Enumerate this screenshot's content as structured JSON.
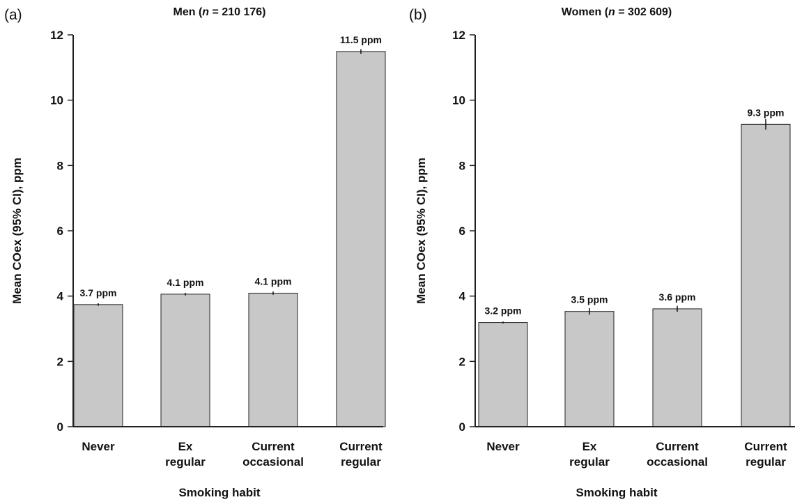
{
  "chart_data": [
    {
      "type": "bar",
      "panel_label": "(a)",
      "title_prefix": "Men (",
      "title_n": "n",
      "title_suffix": " = 210 176)",
      "xlabel": "Smoking habit",
      "ylabel": "Mean COex (95% CI), ppm",
      "ylim": [
        0,
        12
      ],
      "yticks": [
        "0",
        "2",
        "4",
        "6",
        "8",
        "10",
        "12"
      ],
      "categories": [
        [
          "Never"
        ],
        [
          "Ex",
          "regular"
        ],
        [
          "Current",
          "occasional"
        ],
        [
          "Current",
          "regular"
        ]
      ],
      "values": [
        3.74,
        4.06,
        4.09,
        11.49
      ],
      "ci_low": [
        3.7,
        4.02,
        4.04,
        11.42
      ],
      "ci_high": [
        3.78,
        4.1,
        4.14,
        11.56
      ],
      "data_labels": [
        "3.7 ppm",
        "4.1 ppm",
        "4.1 ppm",
        "11.5 ppm"
      ],
      "grid": false
    },
    {
      "type": "bar",
      "panel_label": "(b)",
      "title_prefix": "Women (",
      "title_n": "n",
      "title_suffix": " = 302 609)",
      "xlabel": "Smoking habit",
      "ylabel": "Mean COex (95% CI), ppm",
      "ylim": [
        0,
        12
      ],
      "yticks": [
        "0",
        "2",
        "4",
        "6",
        "8",
        "10",
        "12"
      ],
      "categories": [
        [
          "Never"
        ],
        [
          "Ex",
          "regular"
        ],
        [
          "Current",
          "occasional"
        ],
        [
          "Current",
          "regular"
        ]
      ],
      "values": [
        3.19,
        3.53,
        3.61,
        9.26
      ],
      "ci_low": [
        3.16,
        3.43,
        3.52,
        9.1
      ],
      "ci_high": [
        3.22,
        3.63,
        3.7,
        9.42
      ],
      "data_labels": [
        "3.2 ppm",
        "3.5 ppm",
        "3.6 ppm",
        "9.3 ppm"
      ],
      "grid": false
    }
  ]
}
